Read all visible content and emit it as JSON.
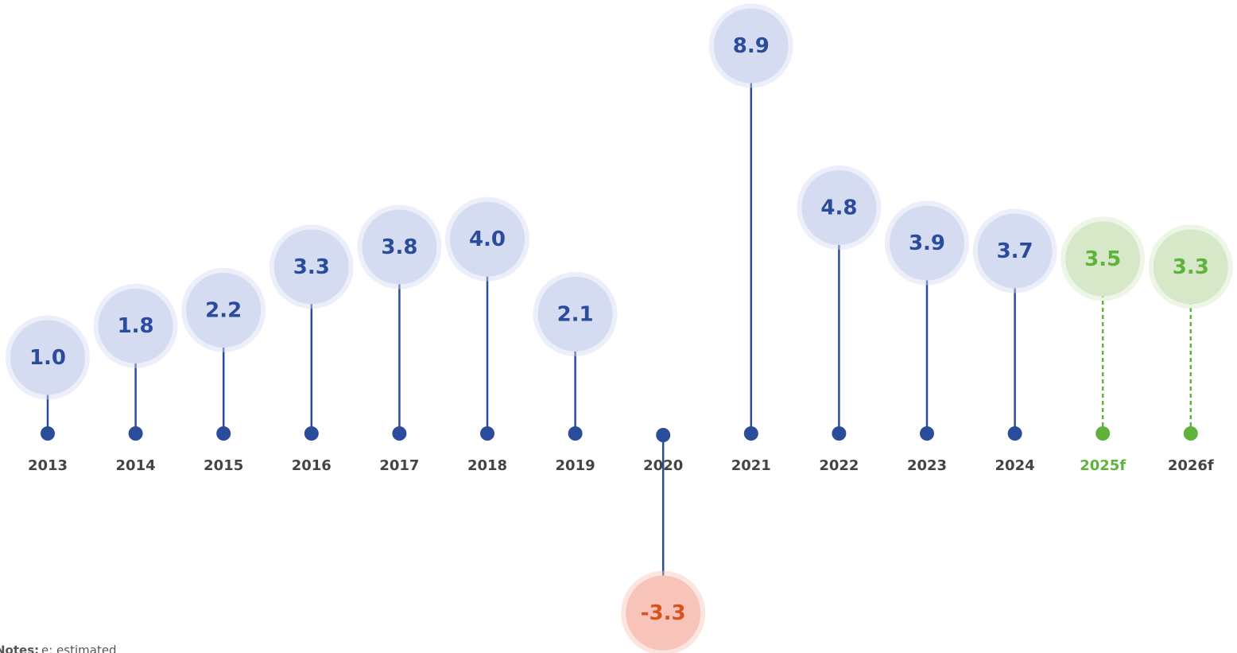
{
  "chart_data": {
    "type": "lollipop",
    "categories": [
      "2013",
      "2014",
      "2015",
      "2016",
      "2017",
      "2018",
      "2019",
      "2020",
      "2021",
      "2022",
      "2023",
      "2024",
      "2025f",
      "2026f"
    ],
    "values": [
      1.0,
      1.8,
      2.2,
      3.3,
      3.8,
      4.0,
      2.1,
      -3.3,
      8.9,
      4.8,
      3.9,
      3.7,
      3.5,
      3.3
    ],
    "value_labels": [
      "1.0",
      "1.8",
      "2.2",
      "3.3",
      "3.8",
      "4.0",
      "2.1",
      "-3.3",
      "8.9",
      "4.8",
      "3.9",
      "3.7",
      "3.5",
      "3.3"
    ],
    "colors": [
      "#2b4c9b",
      "#2b4c9b",
      "#2b4c9b",
      "#2b4c9b",
      "#2b4c9b",
      "#2b4c9b",
      "#2b4c9b",
      "#2b4c9b",
      "#2b4c9b",
      "#2b4c9b",
      "#2b4c9b",
      "#2b4c9b",
      "#5fb33c",
      "#5fb33c"
    ],
    "value_colors": [
      "#2b4c9b",
      "#2b4c9b",
      "#2b4c9b",
      "#2b4c9b",
      "#2b4c9b",
      "#2b4c9b",
      "#2b4c9b",
      "#d9531e",
      "#2b4c9b",
      "#2b4c9b",
      "#2b4c9b",
      "#2b4c9b",
      "#5fb33c",
      "#5fb33c"
    ],
    "bubble_colors": [
      "#d5dcf2",
      "#d5dcf2",
      "#d5dcf2",
      "#d5dcf2",
      "#d5dcf2",
      "#d5dcf2",
      "#d5dcf2",
      "#f8c3b8",
      "#d5dcf2",
      "#d5dcf2",
      "#d5dcf2",
      "#d5dcf2",
      "#d6e8c8",
      "#d6e8c8"
    ],
    "category_colors": [
      "#444",
      "#444",
      "#444",
      "#444",
      "#444",
      "#444",
      "#444",
      "#444",
      "#444",
      "#444",
      "#444",
      "#444",
      "#5fb33c",
      "#444"
    ],
    "dashed": [
      false,
      false,
      false,
      false,
      false,
      false,
      false,
      false,
      false,
      false,
      false,
      false,
      true,
      true
    ],
    "notes": {
      "label": "Notes:",
      "text": "e: estimated"
    }
  }
}
